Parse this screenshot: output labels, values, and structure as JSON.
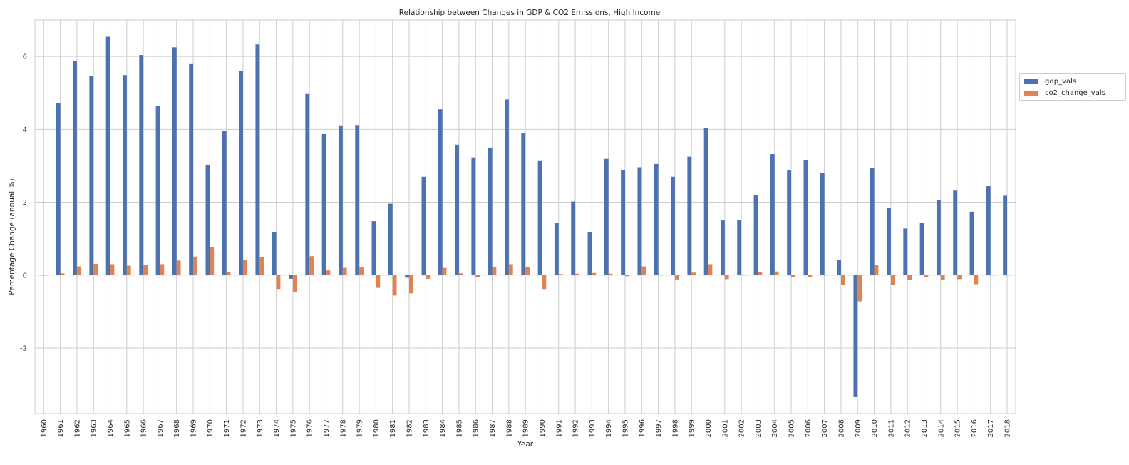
{
  "chart_data": {
    "type": "bar",
    "title": "Relationship between Changes in GDP & CO2 Emissions, High Income",
    "xlabel": "Year",
    "ylabel": "Percentage Change (annual %)",
    "ylim": [
      -3.8,
      7.0
    ],
    "yticks": [
      -2,
      0,
      2,
      4,
      6
    ],
    "grid": true,
    "legend_position": "right, outside plot",
    "categories": [
      "1960",
      "1961",
      "1962",
      "1963",
      "1964",
      "1965",
      "1966",
      "1967",
      "1968",
      "1969",
      "1970",
      "1971",
      "1972",
      "1973",
      "1974",
      "1975",
      "1976",
      "1977",
      "1978",
      "1979",
      "1980",
      "1981",
      "1982",
      "1983",
      "1984",
      "1985",
      "1986",
      "1987",
      "1988",
      "1989",
      "1990",
      "1991",
      "1992",
      "1993",
      "1994",
      "1995",
      "1996",
      "1997",
      "1998",
      "1999",
      "2000",
      "2001",
      "2002",
      "2003",
      "2004",
      "2005",
      "2006",
      "2007",
      "2008",
      "2009",
      "2010",
      "2011",
      "2012",
      "2013",
      "2014",
      "2015",
      "2016",
      "2017",
      "2018"
    ],
    "series": [
      {
        "name": "gdp_vals",
        "color": "#4c72b0",
        "values": [
          0.0,
          4.72,
          5.88,
          5.46,
          6.54,
          5.49,
          6.04,
          4.65,
          6.25,
          5.79,
          3.02,
          3.95,
          5.6,
          6.33,
          1.19,
          -0.1,
          4.97,
          3.87,
          4.11,
          4.12,
          1.48,
          1.96,
          -0.07,
          2.7,
          4.55,
          3.58,
          3.23,
          3.5,
          4.82,
          3.89,
          3.13,
          1.44,
          2.02,
          1.19,
          3.19,
          2.88,
          2.96,
          3.05,
          2.7,
          3.25,
          4.03,
          1.5,
          1.52,
          2.19,
          3.32,
          2.87,
          3.16,
          2.81,
          0.42,
          -3.33,
          2.93,
          1.85,
          1.28,
          1.44,
          2.05,
          2.32,
          1.74,
          2.44,
          2.18
        ]
      },
      {
        "name": "co2_change_vals",
        "color": "#dd8452",
        "values": [
          0.0,
          0.05,
          0.24,
          0.31,
          0.3,
          0.26,
          0.27,
          0.3,
          0.4,
          0.51,
          0.76,
          0.09,
          0.42,
          0.5,
          -0.38,
          -0.47,
          0.52,
          0.13,
          0.2,
          0.21,
          -0.35,
          -0.56,
          -0.5,
          -0.1,
          0.2,
          0.05,
          -0.05,
          0.22,
          0.3,
          0.21,
          -0.38,
          0.03,
          0.04,
          0.06,
          0.04,
          -0.03,
          0.24,
          0.0,
          -0.12,
          0.07,
          0.3,
          -0.11,
          0.0,
          0.08,
          0.1,
          -0.05,
          -0.05,
          0.0,
          -0.26,
          -0.72,
          0.28,
          -0.26,
          -0.14,
          -0.05,
          -0.13,
          -0.11,
          -0.25,
          0.0,
          0.0
        ]
      }
    ]
  }
}
